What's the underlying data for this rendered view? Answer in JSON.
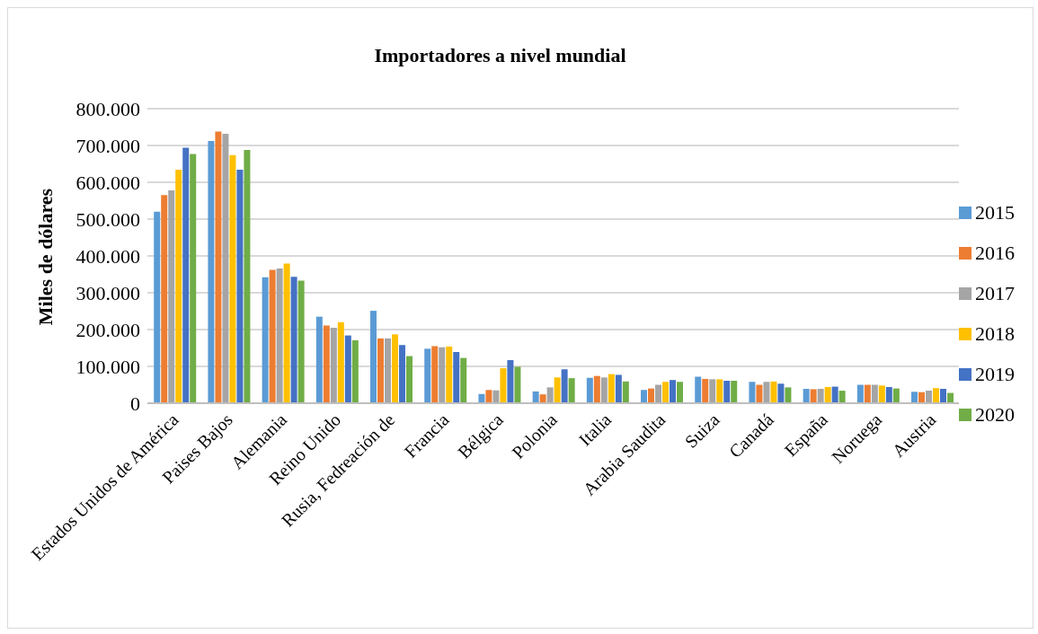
{
  "chart_data": {
    "type": "bar",
    "title": "Importadores a nivel mundial",
    "ylabel": "Miles de dólares",
    "categories": [
      "Estados Unidos de América",
      "Paises Bajos",
      "Alemania",
      "Reino Unido",
      "Rusia, Fedreación de",
      "Francia",
      "Bélgica",
      "Polonia",
      "Italia",
      "Arabia Saudita",
      "Suiza",
      "Canadá",
      "España",
      "Noruega",
      "Austria"
    ],
    "series": [
      {
        "name": "2015",
        "color": "#5b9bd5",
        "values": [
          520000,
          712000,
          342000,
          235000,
          251000,
          148000,
          25000,
          32000,
          69000,
          36000,
          72000,
          58000,
          39000,
          50000,
          31000
        ]
      },
      {
        "name": "2016",
        "color": "#ed7d31",
        "values": [
          565000,
          738000,
          362000,
          211000,
          176000,
          155000,
          36000,
          24000,
          74000,
          40000,
          66000,
          50000,
          38000,
          50000,
          30000
        ]
      },
      {
        "name": "2017",
        "color": "#a5a5a5",
        "values": [
          578000,
          732000,
          366000,
          205000,
          176000,
          152000,
          35000,
          43000,
          70000,
          50000,
          65000,
          58000,
          39000,
          50000,
          34000
        ]
      },
      {
        "name": "2018",
        "color": "#ffc000",
        "values": [
          634000,
          674000,
          379000,
          220000,
          187000,
          154000,
          95000,
          70000,
          79000,
          58000,
          65000,
          59000,
          44000,
          48000,
          41000
        ]
      },
      {
        "name": "2019",
        "color": "#4472c4",
        "values": [
          694000,
          634000,
          343000,
          184000,
          158000,
          139000,
          117000,
          92000,
          77000,
          63000,
          61000,
          53000,
          45000,
          44000,
          39000
        ]
      },
      {
        "name": "2020",
        "color": "#70ad47",
        "values": [
          677000,
          688000,
          333000,
          171000,
          128000,
          123000,
          99000,
          68000,
          59000,
          58000,
          61000,
          43000,
          34000,
          40000,
          28000
        ]
      }
    ],
    "ylim": [
      0,
      800000
    ],
    "yticks": [
      0,
      {
        "value": 100000,
        "label": "100.000"
      },
      {
        "value": 200000,
        "label": "200.000"
      },
      {
        "value": 300000,
        "label": "300.000"
      },
      {
        "value": 400000,
        "label": "400.000"
      },
      {
        "value": 500000,
        "label": "500.000"
      },
      {
        "value": 600000,
        "label": "600.000"
      },
      {
        "value": 700000,
        "label": "700.000"
      },
      {
        "value": 800000,
        "label": "800.000"
      }
    ],
    "grid": "y",
    "legend": "right"
  }
}
